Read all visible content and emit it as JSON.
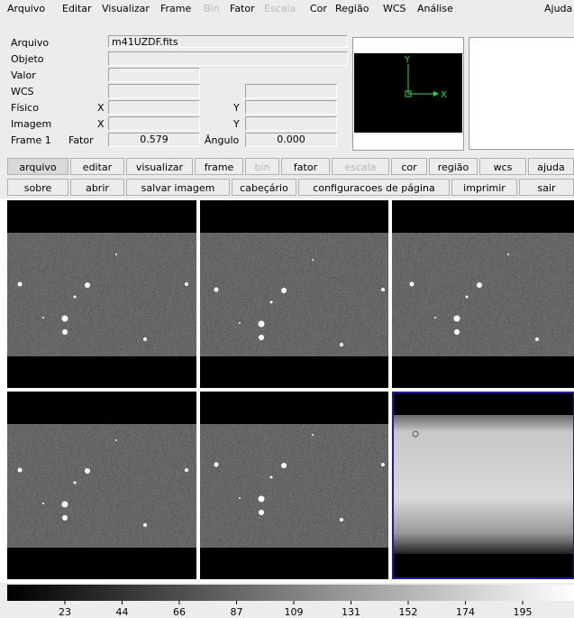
{
  "menu": {
    "items": [
      "Arquivo",
      "Editar",
      "Visualizar",
      "Frame",
      "Bin",
      "Fator",
      "Escala",
      "Cor",
      "Região",
      "WCS",
      "Análise"
    ],
    "help": "Ajuda"
  },
  "info": {
    "file_label": "Arquivo",
    "file": "m41UZDF.fits",
    "object_label": "Objeto",
    "value_label": "Valor",
    "wcs_label": "WCS",
    "physical_label": "Físico",
    "image_label": "Imagem",
    "frame_label": "Frame 1",
    "x_label": "X",
    "y_label": "Y",
    "zoom_label": "Fator",
    "zoom": "0.579",
    "angle_label": "Ângulo",
    "angle": "0.000"
  },
  "panner": {
    "y": "Y",
    "x": "X"
  },
  "buttons": {
    "row1": [
      "arquivo",
      "editar",
      "visualizar",
      "frame",
      "bin",
      "fator",
      "escala",
      "cor",
      "região",
      "wcs",
      "ajuda"
    ],
    "row2": [
      "sobre",
      "abrir",
      "salvar imagem",
      "cabeçário",
      "configuracoes de página",
      "imprimir",
      "sair"
    ]
  },
  "colorbar": {
    "ticks": [
      23,
      44,
      66,
      87,
      109,
      131,
      152,
      174,
      195
    ]
  }
}
